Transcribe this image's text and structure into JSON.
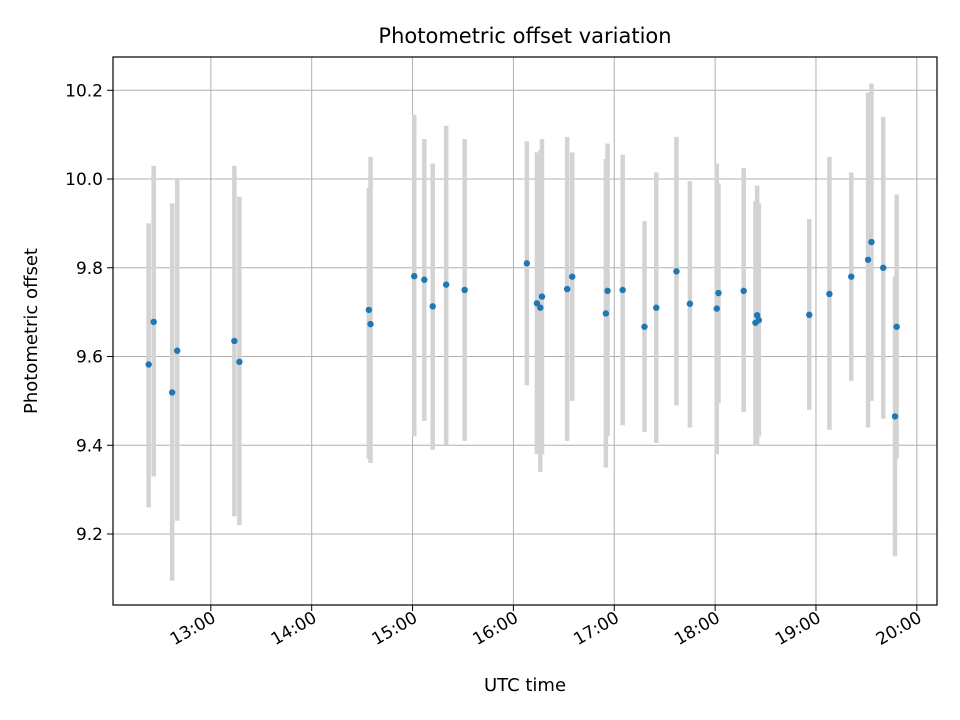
{
  "chart_data": {
    "type": "scatter",
    "title": "Photometric offset variation",
    "xlabel": "UTC time",
    "ylabel": "Photometric offset",
    "grid": true,
    "x_tick_labels": [
      "13:00",
      "14:00",
      "15:00",
      "16:00",
      "17:00",
      "18:00",
      "19:00",
      "20:00"
    ],
    "x_tick_hours": [
      13,
      14,
      15,
      16,
      17,
      18,
      19,
      20
    ],
    "xlim_hours": [
      12.03,
      20.2
    ],
    "y_ticks": [
      9.2,
      9.4,
      9.6,
      9.8,
      10.0,
      10.2
    ],
    "y_tick_labels": [
      "9.2",
      "9.4",
      "9.6",
      "9.8",
      "10.0",
      "10.2"
    ],
    "ylim": [
      9.04,
      10.275
    ],
    "marker_color": "#1f77b4",
    "errorbar_color": "#d3d3d3",
    "points": [
      {
        "t": "12:23",
        "y": 9.582,
        "lo": 9.26,
        "hi": 9.9
      },
      {
        "t": "12:26",
        "y": 9.678,
        "lo": 9.33,
        "hi": 10.03
      },
      {
        "t": "12:37",
        "y": 9.519,
        "lo": 9.095,
        "hi": 9.945
      },
      {
        "t": "12:40",
        "y": 9.613,
        "lo": 9.23,
        "hi": 10.0
      },
      {
        "t": "13:14",
        "y": 9.635,
        "lo": 9.24,
        "hi": 10.03
      },
      {
        "t": "13:17",
        "y": 9.588,
        "lo": 9.22,
        "hi": 9.96
      },
      {
        "t": "14:34",
        "y": 9.705,
        "lo": 9.37,
        "hi": 9.98
      },
      {
        "t": "14:35",
        "y": 9.673,
        "lo": 9.36,
        "hi": 10.05
      },
      {
        "t": "15:01",
        "y": 9.781,
        "lo": 9.42,
        "hi": 10.145
      },
      {
        "t": "15:07",
        "y": 9.773,
        "lo": 9.455,
        "hi": 10.09
      },
      {
        "t": "15:12",
        "y": 9.713,
        "lo": 9.39,
        "hi": 10.035
      },
      {
        "t": "15:20",
        "y": 9.762,
        "lo": 9.4,
        "hi": 10.12
      },
      {
        "t": "15:31",
        "y": 9.75,
        "lo": 9.41,
        "hi": 10.09
      },
      {
        "t": "16:08",
        "y": 9.81,
        "lo": 9.535,
        "hi": 10.085
      },
      {
        "t": "16:14",
        "y": 9.72,
        "lo": 9.38,
        "hi": 10.06
      },
      {
        "t": "16:16",
        "y": 9.71,
        "lo": 9.34,
        "hi": 10.065
      },
      {
        "t": "16:17",
        "y": 9.735,
        "lo": 9.38,
        "hi": 10.09
      },
      {
        "t": "16:32",
        "y": 9.752,
        "lo": 9.41,
        "hi": 10.095
      },
      {
        "t": "16:35",
        "y": 9.78,
        "lo": 9.5,
        "hi": 10.06
      },
      {
        "t": "16:55",
        "y": 9.697,
        "lo": 9.35,
        "hi": 10.045
      },
      {
        "t": "16:56",
        "y": 9.748,
        "lo": 9.42,
        "hi": 10.08
      },
      {
        "t": "17:05",
        "y": 9.75,
        "lo": 9.445,
        "hi": 10.055
      },
      {
        "t": "17:18",
        "y": 9.667,
        "lo": 9.43,
        "hi": 9.905
      },
      {
        "t": "17:25",
        "y": 9.71,
        "lo": 9.405,
        "hi": 10.015
      },
      {
        "t": "17:37",
        "y": 9.792,
        "lo": 9.49,
        "hi": 10.095
      },
      {
        "t": "17:45",
        "y": 9.719,
        "lo": 9.44,
        "hi": 9.995
      },
      {
        "t": "18:01",
        "y": 9.708,
        "lo": 9.38,
        "hi": 10.035
      },
      {
        "t": "18:02",
        "y": 9.743,
        "lo": 9.495,
        "hi": 9.99
      },
      {
        "t": "18:17",
        "y": 9.748,
        "lo": 9.475,
        "hi": 10.025
      },
      {
        "t": "18:24",
        "y": 9.676,
        "lo": 9.4,
        "hi": 9.95
      },
      {
        "t": "18:25",
        "y": 9.693,
        "lo": 9.4,
        "hi": 9.985
      },
      {
        "t": "18:26",
        "y": 9.682,
        "lo": 9.42,
        "hi": 9.945
      },
      {
        "t": "18:56",
        "y": 9.694,
        "lo": 9.48,
        "hi": 9.91
      },
      {
        "t": "19:08",
        "y": 9.741,
        "lo": 9.435,
        "hi": 10.05
      },
      {
        "t": "19:21",
        "y": 9.78,
        "lo": 9.545,
        "hi": 10.015
      },
      {
        "t": "19:31",
        "y": 9.818,
        "lo": 9.44,
        "hi": 10.195
      },
      {
        "t": "19:33",
        "y": 9.858,
        "lo": 9.5,
        "hi": 10.215
      },
      {
        "t": "19:40",
        "y": 9.8,
        "lo": 9.46,
        "hi": 10.14
      },
      {
        "t": "19:47",
        "y": 9.465,
        "lo": 9.15,
        "hi": 9.78
      },
      {
        "t": "19:48",
        "y": 9.667,
        "lo": 9.37,
        "hi": 9.965
      }
    ]
  }
}
